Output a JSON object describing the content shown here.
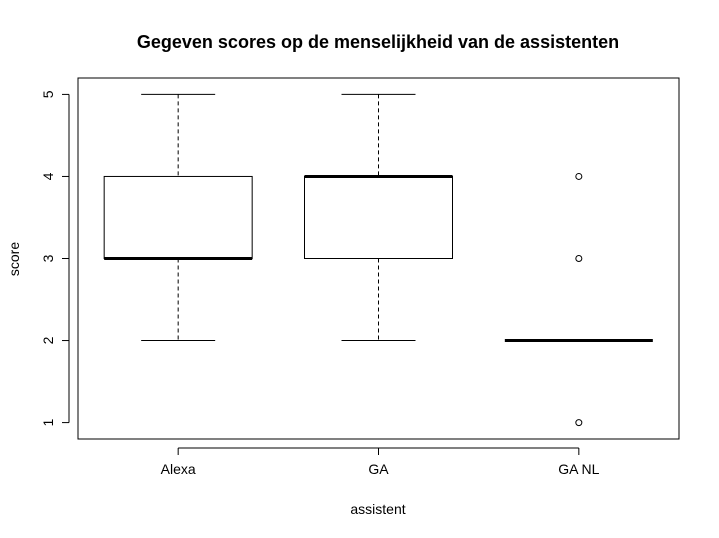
{
  "chart_data": {
    "type": "boxplot",
    "title": "Gegeven scores op de menselijkheid van de assistenten",
    "xlabel": "assistent",
    "ylabel": "score",
    "categories": [
      "Alexa",
      "GA",
      "GA NL"
    ],
    "ylim": [
      0.8,
      5.2
    ],
    "yticks": [
      1,
      2,
      3,
      4,
      5
    ],
    "boxes": [
      {
        "category": "Alexa",
        "whisker_low": 2,
        "q1": 3,
        "median": 3,
        "q3": 4,
        "whisker_high": 5,
        "outliers": []
      },
      {
        "category": "GA",
        "whisker_low": 2,
        "q1": 3,
        "median": 4,
        "q3": 4,
        "whisker_high": 5,
        "outliers": []
      },
      {
        "category": "GA NL",
        "whisker_low": 2,
        "q1": 2,
        "median": 2,
        "q3": 2,
        "whisker_high": 2,
        "outliers": [
          1,
          3,
          4
        ]
      }
    ],
    "grid": false,
    "legend": "none"
  }
}
